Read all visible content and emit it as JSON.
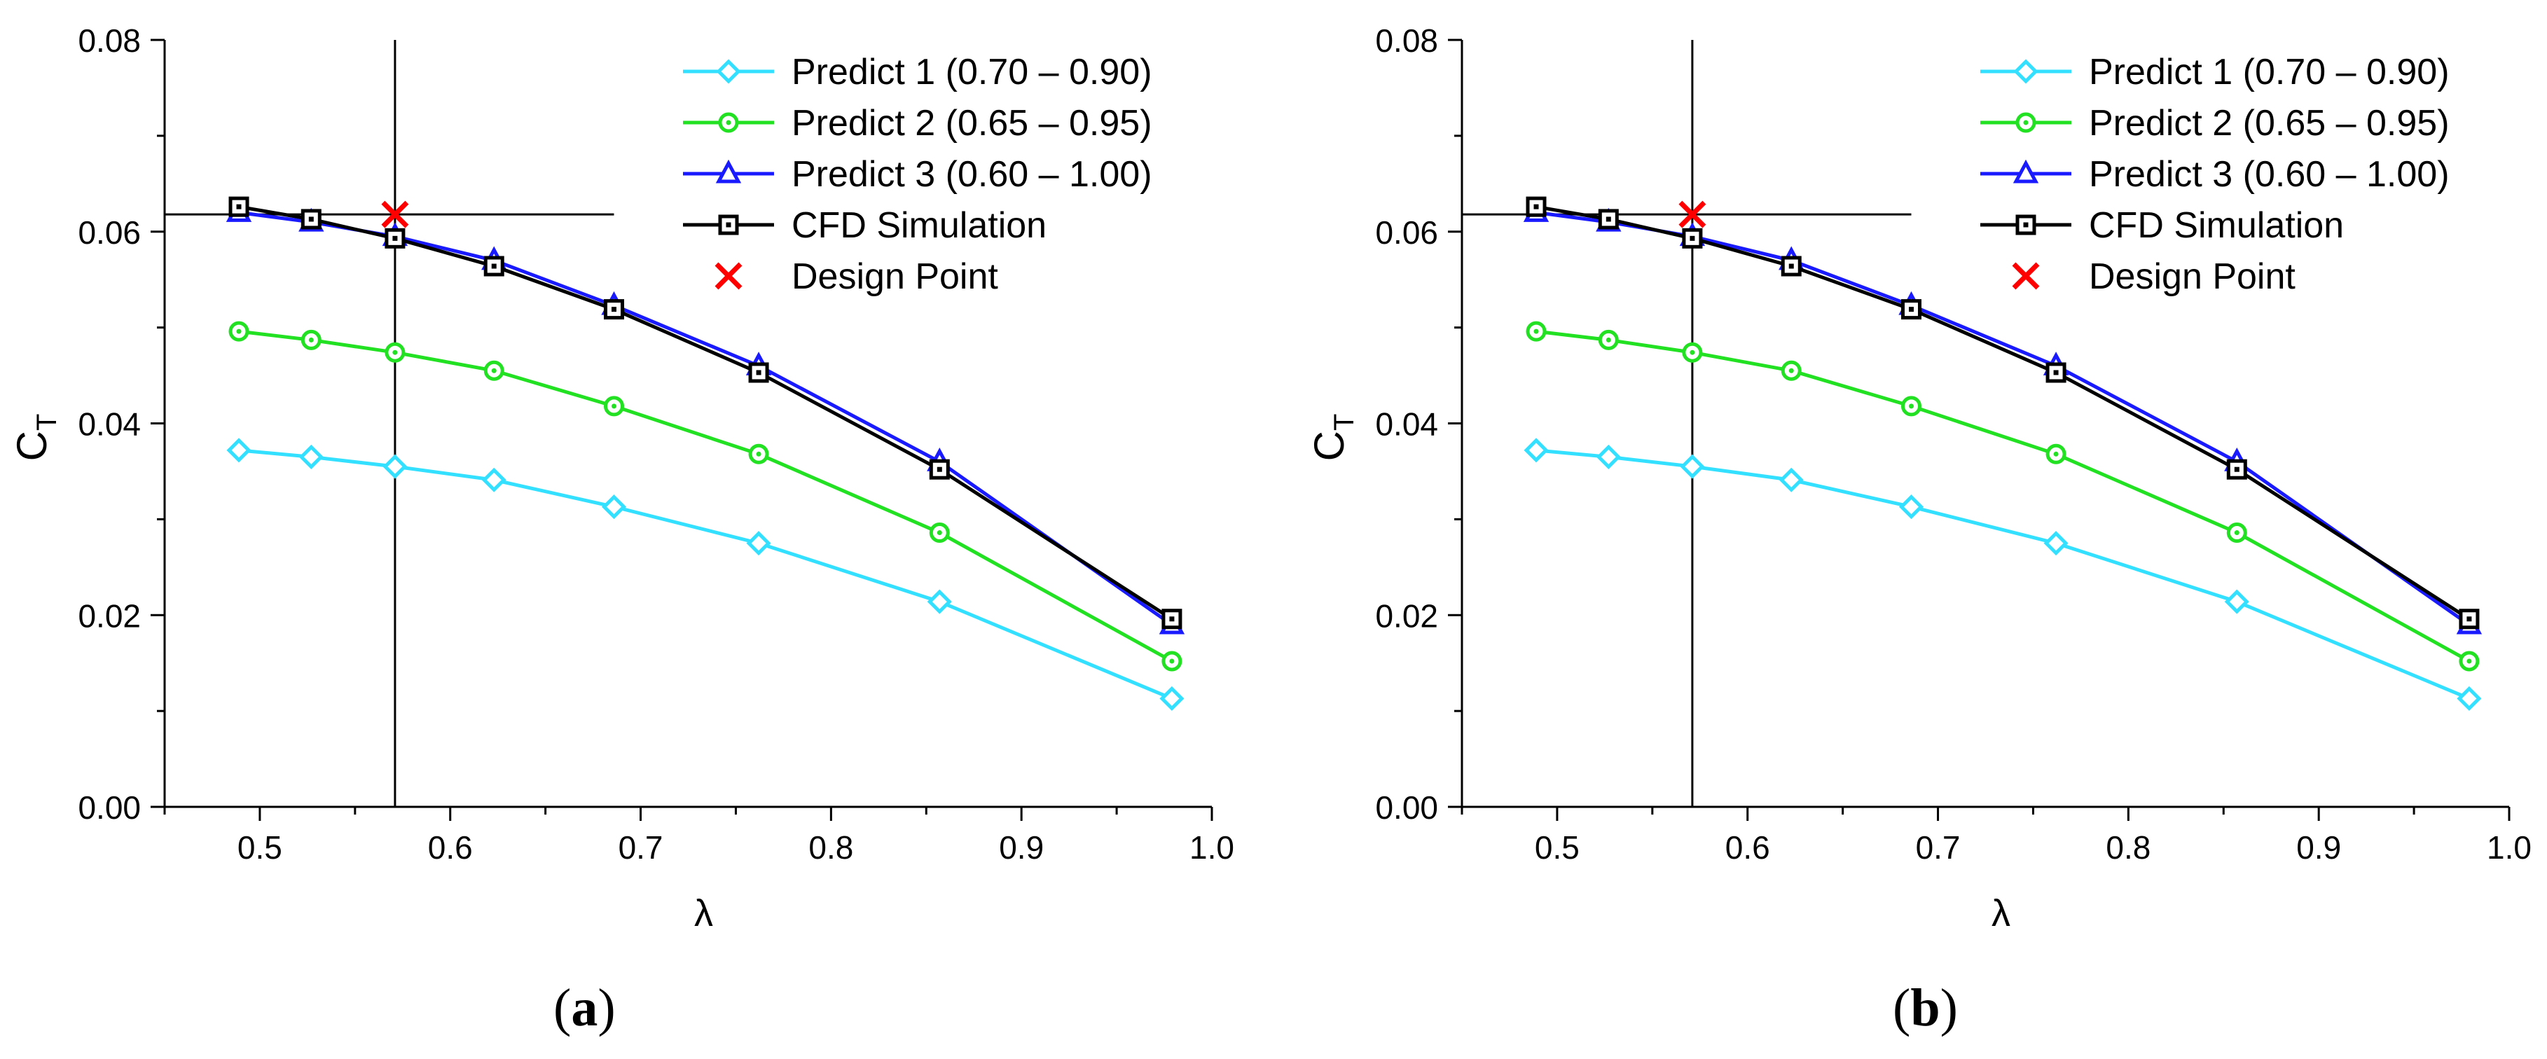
{
  "chart_data": [
    {
      "panel": "(a)",
      "panel_letter": "a",
      "type": "line",
      "xlabel": "λ",
      "ylabel_main": "C",
      "ylabel_sub": "T",
      "xlim": [
        0.45,
        1.0
      ],
      "ylim": [
        0.0,
        0.08
      ],
      "xticks": [
        0.5,
        0.6,
        0.7,
        0.8,
        0.9,
        1.0
      ],
      "xtick_labels": [
        "0.5",
        "0.6",
        "0.7",
        "0.8",
        "0.9",
        "1.0"
      ],
      "yticks": [
        0.0,
        0.02,
        0.04,
        0.06,
        0.08
      ],
      "ytick_labels": [
        "0.00",
        "0.02",
        "0.04",
        "0.06",
        "0.08"
      ],
      "grid": false,
      "legend_position": "top-right",
      "series": [
        {
          "name": "Predict 1 (0.70 – 0.90)",
          "color": "#33e0ff",
          "marker": "diamond",
          "x": [
            0.489,
            0.527,
            0.571,
            0.623,
            0.686,
            0.762,
            0.857,
            0.979
          ],
          "y": [
            0.0372,
            0.0365,
            0.0355,
            0.0341,
            0.0313,
            0.0275,
            0.0214,
            0.0113
          ]
        },
        {
          "name": "Predict 2 (0.65 – 0.95)",
          "color": "#22e022",
          "marker": "circle",
          "x": [
            0.489,
            0.527,
            0.571,
            0.623,
            0.686,
            0.762,
            0.857,
            0.979
          ],
          "y": [
            0.0496,
            0.0487,
            0.0474,
            0.0455,
            0.0418,
            0.0368,
            0.0286,
            0.0152
          ]
        },
        {
          "name": "Predict 3 (0.60 – 1.00)",
          "color": "#1a1aff",
          "marker": "triangle",
          "x": [
            0.489,
            0.527,
            0.571,
            0.623,
            0.686,
            0.762,
            0.857,
            0.979
          ],
          "y": [
            0.062,
            0.061,
            0.0595,
            0.057,
            0.0523,
            0.046,
            0.036,
            0.019
          ]
        },
        {
          "name": "CFD Simulation",
          "color": "#000000",
          "marker": "square",
          "x": [
            0.489,
            0.527,
            0.571,
            0.623,
            0.686,
            0.762,
            0.857,
            0.979
          ],
          "y": [
            0.0626,
            0.0613,
            0.0593,
            0.0564,
            0.0519,
            0.0453,
            0.0352,
            0.0196
          ]
        },
        {
          "name": "Design Point",
          "color": "#ff0000",
          "marker": "x",
          "line": false,
          "x": [
            0.571
          ],
          "y": [
            0.0618
          ]
        }
      ],
      "crosshair": {
        "x": 0.571,
        "y": 0.0618,
        "y_line_x_end": 0.686
      }
    },
    {
      "panel": "(b)",
      "panel_letter": "b",
      "type": "line",
      "xlabel": "λ",
      "ylabel_main": "C",
      "ylabel_sub": "T",
      "xlim": [
        0.45,
        1.0
      ],
      "ylim": [
        0.0,
        0.08
      ],
      "xticks": [
        0.5,
        0.6,
        0.7,
        0.8,
        0.9,
        1.0
      ],
      "xtick_labels": [
        "0.5",
        "0.6",
        "0.7",
        "0.8",
        "0.9",
        "1.0"
      ],
      "yticks": [
        0.0,
        0.02,
        0.04,
        0.06,
        0.08
      ],
      "ytick_labels": [
        "0.00",
        "0.02",
        "0.04",
        "0.06",
        "0.08"
      ],
      "grid": false,
      "legend_position": "top-right",
      "series": [
        {
          "name": "Predict 1 (0.70 – 0.90)",
          "color": "#33e0ff",
          "marker": "diamond",
          "x": [
            0.489,
            0.527,
            0.571,
            0.623,
            0.686,
            0.762,
            0.857,
            0.979
          ],
          "y": [
            0.0372,
            0.0365,
            0.0355,
            0.0341,
            0.0313,
            0.0275,
            0.0214,
            0.0113
          ]
        },
        {
          "name": "Predict 2 (0.65 – 0.95)",
          "color": "#22e022",
          "marker": "circle",
          "x": [
            0.489,
            0.527,
            0.571,
            0.623,
            0.686,
            0.762,
            0.857,
            0.979
          ],
          "y": [
            0.0496,
            0.0487,
            0.0474,
            0.0455,
            0.0418,
            0.0368,
            0.0286,
            0.0152
          ]
        },
        {
          "name": "Predict 3 (0.60 – 1.00)",
          "color": "#1a1aff",
          "marker": "triangle",
          "x": [
            0.489,
            0.527,
            0.571,
            0.623,
            0.686,
            0.762,
            0.857,
            0.979
          ],
          "y": [
            0.062,
            0.061,
            0.0595,
            0.057,
            0.0523,
            0.046,
            0.036,
            0.019
          ]
        },
        {
          "name": "CFD Simulation",
          "color": "#000000",
          "marker": "square",
          "x": [
            0.489,
            0.527,
            0.571,
            0.623,
            0.686,
            0.762,
            0.857,
            0.979
          ],
          "y": [
            0.0626,
            0.0613,
            0.0593,
            0.0564,
            0.0519,
            0.0453,
            0.0352,
            0.0196
          ]
        },
        {
          "name": "Design Point",
          "color": "#ff0000",
          "marker": "x",
          "line": false,
          "x": [
            0.571
          ],
          "y": [
            0.0618
          ]
        }
      ],
      "crosshair": {
        "x": 0.571,
        "y": 0.0618,
        "y_line_x_end": 0.686
      }
    }
  ]
}
